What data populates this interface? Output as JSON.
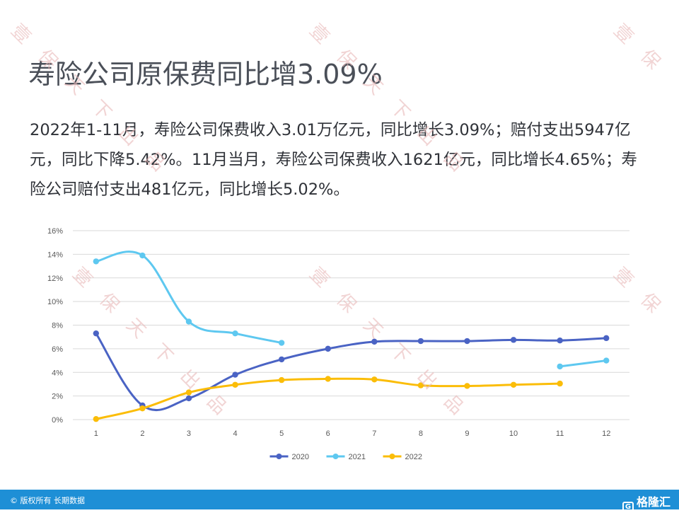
{
  "title": "寿险公司原保费同比增3.09%",
  "summary": "2022年1-11月，寿险公司保费收入3.01万亿元，同比增长3.09%；赔付支出5947亿元，同比下降5.42%。11月当月，寿险公司保费收入1621亿元，同比增长4.65%；寿险公司赔付支出481亿元，同比增长5.02%。",
  "watermark_text": [
    "壹",
    "保",
    "天",
    "下",
    "出",
    "品"
  ],
  "footer": {
    "copyright": "© 版权所有 长期数据",
    "brand": "格隆汇",
    "brand_icon": "G"
  },
  "colors": {
    "series_2020": "#4a63c4",
    "series_2021": "#5ec8f0",
    "series_2022": "#fbbd08",
    "grid": "#d9d9d9",
    "axis_text": "#595959",
    "footer_bg": "#1e8fd6"
  },
  "chart_data": {
    "type": "line",
    "categories": [
      "1",
      "2",
      "3",
      "4",
      "5",
      "6",
      "7",
      "8",
      "9",
      "10",
      "11",
      "12"
    ],
    "ylim": [
      0,
      16
    ],
    "yticks": [
      0,
      2,
      4,
      6,
      8,
      10,
      12,
      14,
      16
    ],
    "ytick_labels": [
      "0%",
      "2%",
      "4%",
      "6%",
      "8%",
      "10%",
      "12%",
      "14%",
      "16%"
    ],
    "grid": true,
    "legend_position": "bottom",
    "series": [
      {
        "name": "2020",
        "values": [
          7.3,
          1.2,
          1.8,
          3.8,
          5.1,
          6.0,
          6.6,
          6.65,
          6.65,
          6.75,
          6.7,
          6.9
        ]
      },
      {
        "name": "2021",
        "values": [
          13.4,
          13.9,
          8.3,
          7.3,
          6.5,
          null,
          null,
          null,
          null,
          null,
          4.5,
          5.0
        ]
      },
      {
        "name": "2022",
        "values": [
          0.05,
          0.95,
          2.3,
          2.95,
          3.35,
          3.45,
          3.4,
          2.9,
          2.85,
          2.95,
          3.05,
          null
        ]
      }
    ]
  }
}
